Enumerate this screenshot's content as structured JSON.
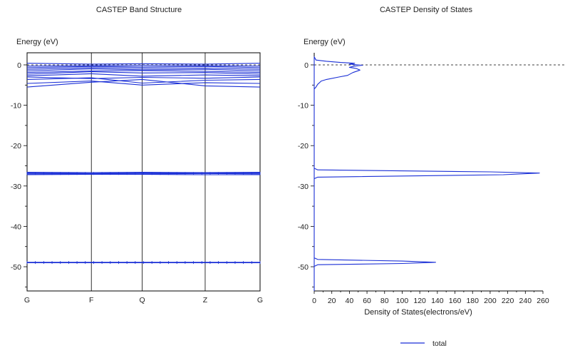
{
  "colors": {
    "band": "#1a2fd6",
    "axis": "#000000",
    "grid": "#000000",
    "text": "#222222"
  },
  "legend": {
    "label": "total",
    "position": "bottom-right"
  },
  "chart_data": [
    {
      "type": "line",
      "title": "CASTEP Band Structure",
      "ylabel": "Energy (eV)",
      "ylim": [
        -56,
        3
      ],
      "yticks": [
        0,
        -10,
        -20,
        -30,
        -40,
        -50
      ],
      "xticks": [
        {
          "label": "G",
          "pos": 0
        },
        {
          "label": "F",
          "pos": 0.2759
        },
        {
          "label": "Q",
          "pos": 0.4943
        },
        {
          "label": "Z",
          "pos": 0.7644
        },
        {
          "label": "G",
          "pos": 1
        }
      ],
      "fermi_level": 0,
      "bands": [
        {
          "x": [
            0,
            0.2759,
            0.4943,
            0.7644,
            1
          ],
          "y": [
            -5.5,
            -4.3,
            -3.6,
            -5.2,
            -5.5
          ]
        },
        {
          "x": [
            0,
            0.2759,
            0.4943,
            0.7644,
            1
          ],
          "y": [
            -4.6,
            -4.0,
            -5.0,
            -4.4,
            -4.6
          ]
        },
        {
          "x": [
            0,
            0.2759,
            0.4943,
            0.7644,
            1
          ],
          "y": [
            -3.6,
            -3.2,
            -4.5,
            -3.8,
            -3.6
          ]
        },
        {
          "x": [
            0,
            0.2759,
            0.4943,
            0.7644,
            1
          ],
          "y": [
            -3.0,
            -3.4,
            -3.1,
            -3.3,
            -3.0
          ]
        },
        {
          "x": [
            0,
            0.2759,
            0.4943,
            0.7644,
            1
          ],
          "y": [
            -2.7,
            -2.2,
            -2.8,
            -2.5,
            -2.7
          ]
        },
        {
          "x": [
            0,
            0.2759,
            0.4943,
            0.7644,
            1
          ],
          "y": [
            -2.3,
            -1.7,
            -2.0,
            -1.9,
            -2.3
          ]
        },
        {
          "x": [
            0,
            0.2759,
            0.4943,
            0.7644,
            1
          ],
          "y": [
            -1.9,
            -1.5,
            -1.4,
            -1.6,
            -1.9
          ]
        },
        {
          "x": [
            0,
            0.2759,
            0.4943,
            0.7644,
            1
          ],
          "y": [
            -1.5,
            -1.0,
            -1.2,
            -1.1,
            -1.5
          ]
        },
        {
          "x": [
            0,
            0.2759,
            0.4943,
            0.7644,
            1
          ],
          "y": [
            -1.1,
            -0.7,
            -0.8,
            -0.8,
            -1.1
          ]
        },
        {
          "x": [
            0,
            0.2759,
            0.4943,
            0.7644,
            1
          ],
          "y": [
            -0.7,
            -0.4,
            -0.5,
            -0.4,
            -0.7
          ]
        },
        {
          "x": [
            0,
            0.2759,
            0.4943,
            0.7644,
            1
          ],
          "y": [
            -0.3,
            -0.2,
            -0.1,
            -0.2,
            -0.3
          ]
        },
        {
          "x": [
            0,
            0.2759,
            0.4943,
            0.7644,
            1
          ],
          "y": [
            0.4,
            0.2,
            0.3,
            0.2,
            0.4
          ]
        },
        {
          "x": [
            0,
            0.2759,
            0.4943,
            0.7644,
            1
          ],
          "y": [
            -26.6,
            -26.7,
            -26.6,
            -26.7,
            -26.6
          ]
        },
        {
          "x": [
            0,
            0.2759,
            0.4943,
            0.7644,
            1
          ],
          "y": [
            -26.8,
            -26.9,
            -26.8,
            -26.8,
            -26.8
          ]
        },
        {
          "x": [
            0,
            0.2759,
            0.4943,
            0.7644,
            1
          ],
          "y": [
            -27.0,
            -27.0,
            -27.0,
            -26.9,
            -27.0
          ]
        },
        {
          "x": [
            0,
            0.2759,
            0.4943,
            0.7644,
            1
          ],
          "y": [
            -27.2,
            -27.1,
            -27.1,
            -27.2,
            -27.2
          ]
        },
        {
          "x": [
            0,
            0.2759,
            0.4943,
            0.7644,
            1
          ],
          "y": [
            -48.9,
            -48.9,
            -48.9,
            -48.9,
            -48.9
          ]
        },
        {
          "x": [
            0,
            0.2759,
            0.4943,
            0.7644,
            1
          ],
          "y": [
            -49.0,
            -49.0,
            -49.0,
            -49.0,
            -49.0
          ]
        }
      ]
    },
    {
      "type": "line",
      "title": "CASTEP Density of States",
      "ylabel": "Energy (eV)",
      "xlabel": "Density of States(electrons/eV)",
      "xlim": [
        0,
        260
      ],
      "ylim": [
        -56,
        3
      ],
      "xticks": [
        0,
        20,
        40,
        60,
        80,
        100,
        120,
        140,
        160,
        180,
        200,
        220,
        240,
        260
      ],
      "yticks": [
        0,
        -10,
        -20,
        -30,
        -40,
        -50
      ],
      "fermi_level": 0,
      "series": [
        {
          "name": "total",
          "x": [
            0,
            0,
            2,
            4,
            8,
            14,
            28,
            38,
            44,
            52,
            48,
            40,
            46,
            55,
            40,
            46,
            30,
            14,
            2,
            0,
            0,
            4,
            200,
            256,
            215,
            4,
            0,
            0,
            4,
            100,
            138,
            100,
            4,
            0,
            0
          ],
          "y": [
            -56,
            -6,
            -5.5,
            -4.8,
            -4.0,
            -3.6,
            -3.0,
            -2.6,
            -1.9,
            -1.3,
            -0.9,
            -0.6,
            -0.3,
            -0.1,
            0.2,
            0.4,
            0.6,
            0.9,
            1.2,
            2.0,
            -25.6,
            -26.0,
            -26.5,
            -26.8,
            -27.2,
            -27.8,
            -28.2,
            -47.8,
            -48.2,
            -48.6,
            -48.9,
            -49.2,
            -49.5,
            -49.9,
            -56
          ]
        }
      ]
    }
  ]
}
